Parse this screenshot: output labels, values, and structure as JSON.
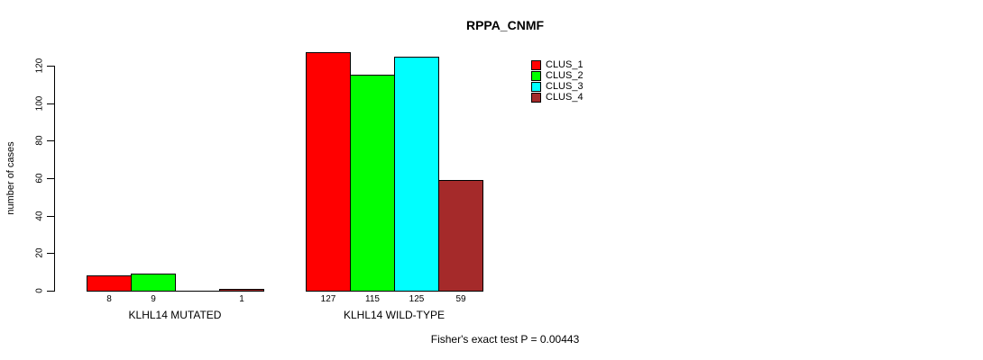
{
  "chart_data": {
    "type": "bar",
    "title": "RPPA_CNMF",
    "xlabel": "",
    "ylabel": "number of cases",
    "ylim": [
      0,
      120
    ],
    "yticks": [
      0,
      20,
      40,
      60,
      80,
      100,
      120
    ],
    "grid": false,
    "legend_position": "top-right",
    "categories": [
      "KLHL14 MUTATED",
      "KLHL14 WILD-TYPE"
    ],
    "series": [
      {
        "name": "CLUS_1",
        "color": "#FF0000",
        "values": [
          8,
          127
        ]
      },
      {
        "name": "CLUS_2",
        "color": "#00FF00",
        "values": [
          9,
          115
        ]
      },
      {
        "name": "CLUS_3",
        "color": "#00FFFF",
        "values": [
          0,
          125
        ]
      },
      {
        "name": "CLUS_4",
        "color": "#A52A2A",
        "values": [
          1,
          59
        ]
      }
    ],
    "bar_value_labels": [
      [
        "8",
        "9",
        "",
        "1"
      ],
      [
        "127",
        "115",
        "125",
        "59"
      ]
    ],
    "annotation": "Fisher's exact test P = 0.00443"
  }
}
